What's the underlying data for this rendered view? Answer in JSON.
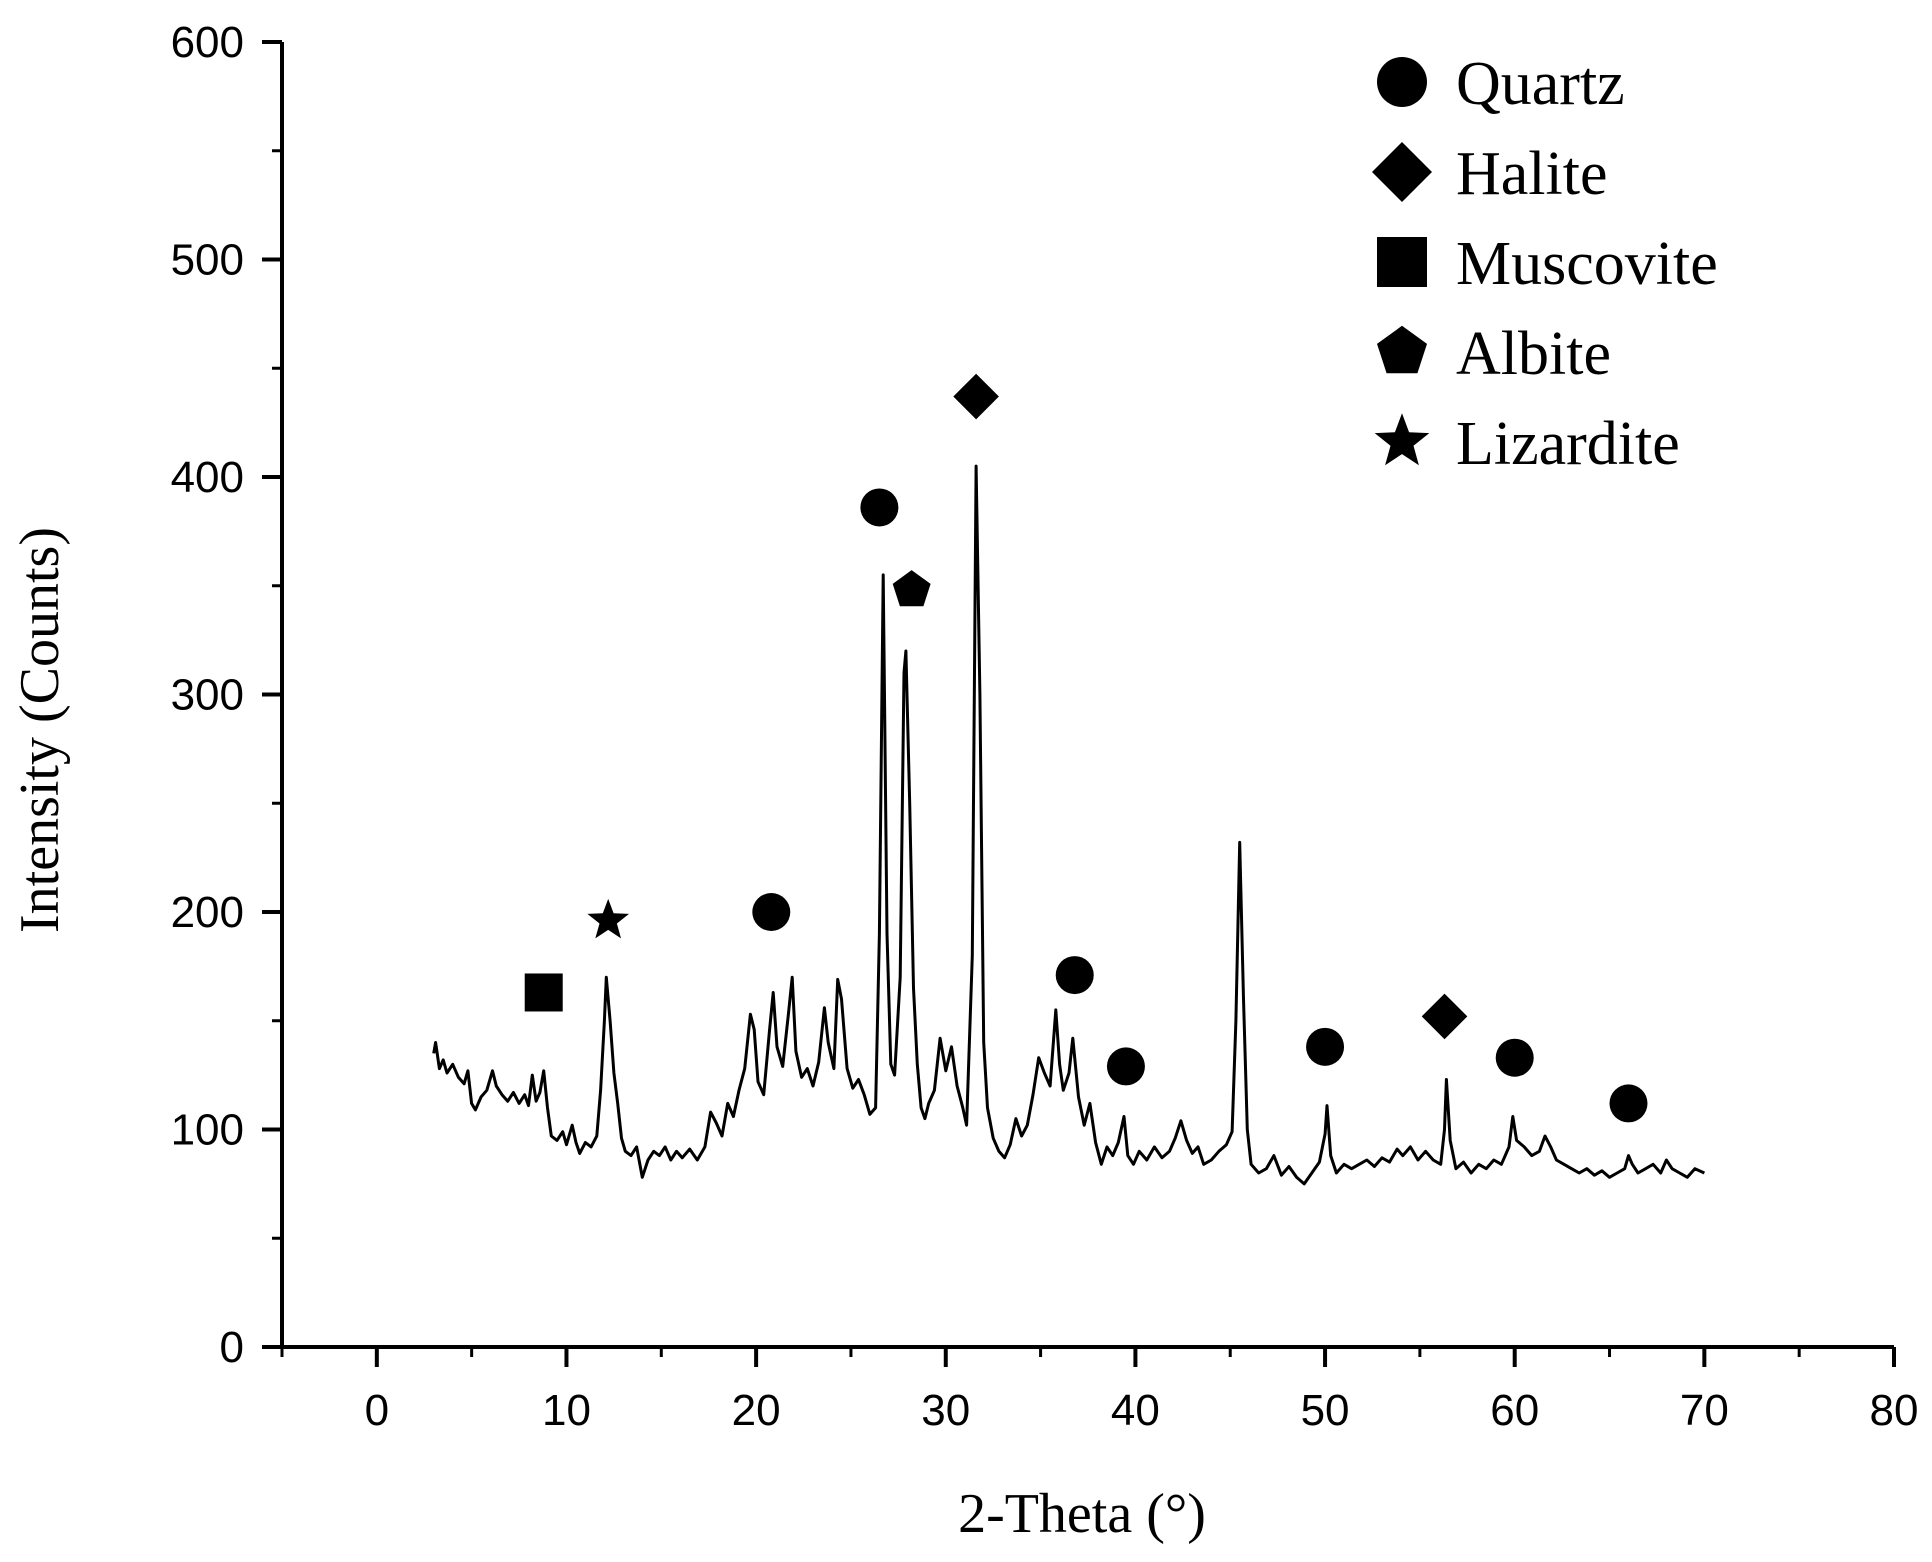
{
  "chart_data": {
    "type": "line",
    "xlabel": "2-Theta (°)",
    "ylabel": "Intensity (Counts)",
    "xlim": [
      -5,
      80
    ],
    "ylim": [
      0,
      600
    ],
    "x_ticks": [
      0,
      10,
      20,
      30,
      40,
      50,
      60,
      70,
      80
    ],
    "x_tick_labels": [
      "0",
      "10",
      "20",
      "30",
      "40",
      "50",
      "60",
      "70",
      "80"
    ],
    "y_ticks": [
      0,
      100,
      200,
      300,
      400,
      500,
      600
    ],
    "y_tick_labels": [
      "0",
      "100",
      "200",
      "300",
      "400",
      "500",
      "600"
    ],
    "grid": false,
    "legend_position": "top-right",
    "line_color": "#000000",
    "legend": [
      {
        "label": "Quartz",
        "marker": "circle"
      },
      {
        "label": "Halite",
        "marker": "diamond"
      },
      {
        "label": "Muscovite",
        "marker": "square"
      },
      {
        "label": "Albite",
        "marker": "pentagon"
      },
      {
        "label": "Lizardite",
        "marker": "star"
      }
    ],
    "series": [
      {
        "values": [
          [
            3.0,
            135
          ],
          [
            3.1,
            140
          ],
          [
            3.3,
            128
          ],
          [
            3.5,
            132
          ],
          [
            3.7,
            126
          ],
          [
            4.0,
            130
          ],
          [
            4.3,
            124
          ],
          [
            4.6,
            121
          ],
          [
            4.8,
            127
          ],
          [
            5.0,
            112
          ],
          [
            5.2,
            109
          ],
          [
            5.5,
            115
          ],
          [
            5.8,
            118
          ],
          [
            6.1,
            127
          ],
          [
            6.3,
            120
          ],
          [
            6.6,
            116
          ],
          [
            6.9,
            113
          ],
          [
            7.2,
            117
          ],
          [
            7.5,
            112
          ],
          [
            7.8,
            116
          ],
          [
            8.0,
            111
          ],
          [
            8.2,
            125
          ],
          [
            8.4,
            113
          ],
          [
            8.6,
            117
          ],
          [
            8.8,
            127
          ],
          [
            9.0,
            110
          ],
          [
            9.2,
            97
          ],
          [
            9.5,
            95
          ],
          [
            9.8,
            99
          ],
          [
            10.0,
            93
          ],
          [
            10.3,
            102
          ],
          [
            10.5,
            94
          ],
          [
            10.7,
            89
          ],
          [
            11.0,
            94
          ],
          [
            11.3,
            92
          ],
          [
            11.6,
            97
          ],
          [
            11.8,
            118
          ],
          [
            12.0,
            150
          ],
          [
            12.1,
            170
          ],
          [
            12.3,
            150
          ],
          [
            12.5,
            126
          ],
          [
            12.7,
            112
          ],
          [
            12.9,
            96
          ],
          [
            13.1,
            90
          ],
          [
            13.4,
            88
          ],
          [
            13.7,
            92
          ],
          [
            14.0,
            78
          ],
          [
            14.3,
            86
          ],
          [
            14.6,
            90
          ],
          [
            14.9,
            88
          ],
          [
            15.2,
            92
          ],
          [
            15.5,
            86
          ],
          [
            15.8,
            90
          ],
          [
            16.1,
            87
          ],
          [
            16.5,
            91
          ],
          [
            16.9,
            86
          ],
          [
            17.3,
            92
          ],
          [
            17.6,
            108
          ],
          [
            17.9,
            103
          ],
          [
            18.2,
            97
          ],
          [
            18.5,
            112
          ],
          [
            18.8,
            106
          ],
          [
            19.1,
            118
          ],
          [
            19.4,
            128
          ],
          [
            19.7,
            153
          ],
          [
            19.9,
            146
          ],
          [
            20.1,
            122
          ],
          [
            20.4,
            116
          ],
          [
            20.7,
            145
          ],
          [
            20.9,
            163
          ],
          [
            21.1,
            138
          ],
          [
            21.4,
            129
          ],
          [
            21.7,
            153
          ],
          [
            21.9,
            170
          ],
          [
            22.1,
            136
          ],
          [
            22.4,
            124
          ],
          [
            22.7,
            128
          ],
          [
            23.0,
            120
          ],
          [
            23.3,
            131
          ],
          [
            23.6,
            156
          ],
          [
            23.8,
            140
          ],
          [
            24.1,
            128
          ],
          [
            24.3,
            169
          ],
          [
            24.5,
            160
          ],
          [
            24.8,
            128
          ],
          [
            25.1,
            119
          ],
          [
            25.4,
            123
          ],
          [
            25.7,
            116
          ],
          [
            26.0,
            107
          ],
          [
            26.3,
            110
          ],
          [
            26.5,
            190
          ],
          [
            26.7,
            355
          ],
          [
            26.9,
            190
          ],
          [
            27.1,
            130
          ],
          [
            27.3,
            125
          ],
          [
            27.6,
            170
          ],
          [
            27.8,
            310
          ],
          [
            27.9,
            320
          ],
          [
            28.1,
            250
          ],
          [
            28.3,
            165
          ],
          [
            28.5,
            130
          ],
          [
            28.7,
            110
          ],
          [
            28.9,
            105
          ],
          [
            29.1,
            112
          ],
          [
            29.4,
            118
          ],
          [
            29.7,
            142
          ],
          [
            30.0,
            127
          ],
          [
            30.3,
            138
          ],
          [
            30.6,
            120
          ],
          [
            30.9,
            110
          ],
          [
            31.1,
            102
          ],
          [
            31.4,
            180
          ],
          [
            31.6,
            405
          ],
          [
            31.8,
            300
          ],
          [
            32.0,
            140
          ],
          [
            32.2,
            110
          ],
          [
            32.5,
            96
          ],
          [
            32.8,
            90
          ],
          [
            33.1,
            87
          ],
          [
            33.4,
            93
          ],
          [
            33.7,
            105
          ],
          [
            34.0,
            97
          ],
          [
            34.3,
            102
          ],
          [
            34.6,
            116
          ],
          [
            34.9,
            133
          ],
          [
            35.2,
            126
          ],
          [
            35.5,
            120
          ],
          [
            35.8,
            155
          ],
          [
            36.0,
            130
          ],
          [
            36.2,
            118
          ],
          [
            36.5,
            126
          ],
          [
            36.7,
            142
          ],
          [
            37.0,
            115
          ],
          [
            37.3,
            102
          ],
          [
            37.6,
            112
          ],
          [
            37.9,
            94
          ],
          [
            38.2,
            84
          ],
          [
            38.5,
            92
          ],
          [
            38.8,
            88
          ],
          [
            39.1,
            94
          ],
          [
            39.4,
            106
          ],
          [
            39.6,
            88
          ],
          [
            39.9,
            84
          ],
          [
            40.2,
            90
          ],
          [
            40.6,
            86
          ],
          [
            41.0,
            92
          ],
          [
            41.4,
            87
          ],
          [
            41.8,
            90
          ],
          [
            42.1,
            96
          ],
          [
            42.4,
            104
          ],
          [
            42.7,
            95
          ],
          [
            43.0,
            89
          ],
          [
            43.3,
            92
          ],
          [
            43.6,
            84
          ],
          [
            44.0,
            86
          ],
          [
            44.4,
            90
          ],
          [
            44.8,
            93
          ],
          [
            45.1,
            99
          ],
          [
            45.3,
            150
          ],
          [
            45.5,
            232
          ],
          [
            45.7,
            160
          ],
          [
            45.9,
            100
          ],
          [
            46.1,
            84
          ],
          [
            46.5,
            80
          ],
          [
            46.9,
            82
          ],
          [
            47.3,
            88
          ],
          [
            47.7,
            79
          ],
          [
            48.1,
            83
          ],
          [
            48.5,
            78
          ],
          [
            48.9,
            75
          ],
          [
            49.3,
            80
          ],
          [
            49.7,
            85
          ],
          [
            50.0,
            98
          ],
          [
            50.1,
            111
          ],
          [
            50.3,
            88
          ],
          [
            50.6,
            80
          ],
          [
            51.0,
            84
          ],
          [
            51.4,
            82
          ],
          [
            51.8,
            84
          ],
          [
            52.2,
            86
          ],
          [
            52.6,
            83
          ],
          [
            53.0,
            87
          ],
          [
            53.4,
            85
          ],
          [
            53.8,
            91
          ],
          [
            54.1,
            88
          ],
          [
            54.5,
            92
          ],
          [
            54.9,
            86
          ],
          [
            55.3,
            90
          ],
          [
            55.7,
            86
          ],
          [
            56.1,
            84
          ],
          [
            56.3,
            100
          ],
          [
            56.4,
            123
          ],
          [
            56.6,
            95
          ],
          [
            56.9,
            82
          ],
          [
            57.3,
            85
          ],
          [
            57.7,
            80
          ],
          [
            58.1,
            84
          ],
          [
            58.5,
            82
          ],
          [
            58.9,
            86
          ],
          [
            59.3,
            84
          ],
          [
            59.7,
            92
          ],
          [
            59.9,
            106
          ],
          [
            60.1,
            95
          ],
          [
            60.5,
            92
          ],
          [
            60.9,
            88
          ],
          [
            61.3,
            90
          ],
          [
            61.6,
            97
          ],
          [
            61.9,
            92
          ],
          [
            62.2,
            86
          ],
          [
            62.6,
            84
          ],
          [
            63.0,
            82
          ],
          [
            63.4,
            80
          ],
          [
            63.8,
            82
          ],
          [
            64.2,
            79
          ],
          [
            64.6,
            81
          ],
          [
            65.0,
            78
          ],
          [
            65.4,
            80
          ],
          [
            65.8,
            82
          ],
          [
            66.0,
            88
          ],
          [
            66.2,
            84
          ],
          [
            66.5,
            80
          ],
          [
            66.9,
            82
          ],
          [
            67.3,
            84
          ],
          [
            67.7,
            80
          ],
          [
            68.0,
            86
          ],
          [
            68.3,
            82
          ],
          [
            68.7,
            80
          ],
          [
            69.1,
            78
          ],
          [
            69.5,
            82
          ],
          [
            70.0,
            80
          ]
        ]
      }
    ],
    "annotations": [
      {
        "mineral": "Muscovite",
        "marker": "square",
        "x": 8.8,
        "y": 163
      },
      {
        "mineral": "Lizardite",
        "marker": "star",
        "x": 12.2,
        "y": 196
      },
      {
        "mineral": "Quartz",
        "marker": "circle",
        "x": 20.8,
        "y": 200
      },
      {
        "mineral": "Quartz",
        "marker": "circle",
        "x": 26.5,
        "y": 386
      },
      {
        "mineral": "Albite",
        "marker": "pentagon",
        "x": 28.2,
        "y": 348
      },
      {
        "mineral": "Halite",
        "marker": "diamond",
        "x": 31.6,
        "y": 437
      },
      {
        "mineral": "Quartz",
        "marker": "circle",
        "x": 36.8,
        "y": 171
      },
      {
        "mineral": "Quartz",
        "marker": "circle",
        "x": 39.5,
        "y": 129
      },
      {
        "mineral": "Quartz",
        "marker": "circle",
        "x": 50.0,
        "y": 138
      },
      {
        "mineral": "Halite",
        "marker": "diamond",
        "x": 56.3,
        "y": 152
      },
      {
        "mineral": "Quartz",
        "marker": "circle",
        "x": 60.0,
        "y": 133
      },
      {
        "mineral": "Quartz",
        "marker": "circle",
        "x": 66.0,
        "y": 112
      }
    ]
  }
}
